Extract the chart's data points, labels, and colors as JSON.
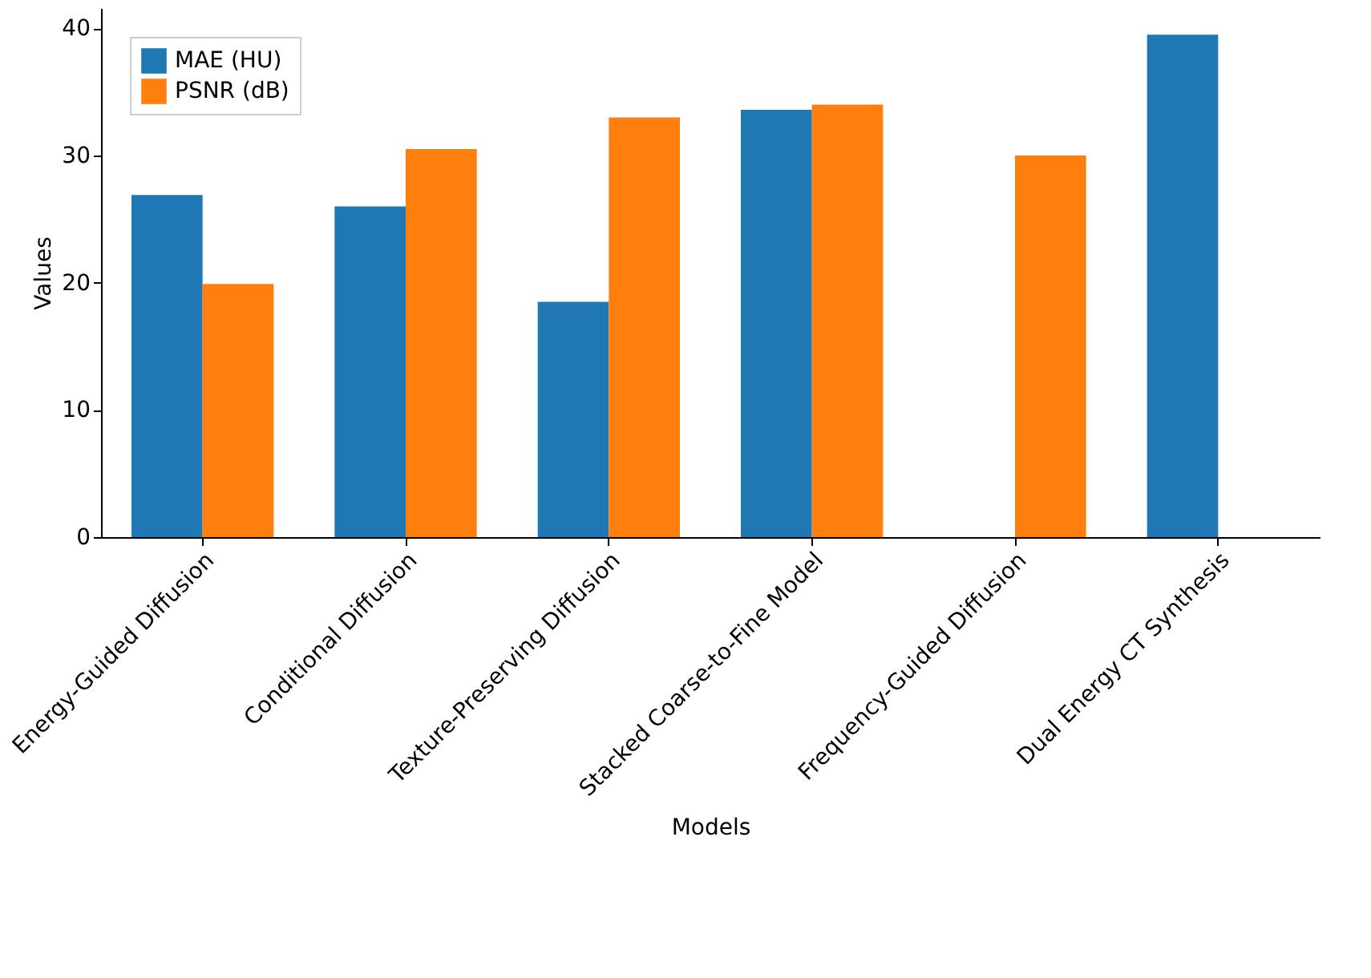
{
  "chart_data": {
    "type": "bar",
    "xlabel": "Models",
    "ylabel": "Values",
    "categories": [
      "Energy-Guided Diffusion",
      "Conditional Diffusion",
      "Texture-Preserving Diffusion",
      "Stacked Coarse-to-Fine Model",
      "Frequency-Guided Diffusion",
      "Dual Energy CT Synthesis"
    ],
    "series": [
      {
        "name": "MAE (HU)",
        "color": "#1f77b4",
        "values": [
          26.9,
          26.0,
          18.5,
          33.6,
          null,
          39.5
        ]
      },
      {
        "name": "PSNR (dB)",
        "color": "#ff7f0e",
        "values": [
          19.9,
          30.5,
          33.0,
          34.0,
          30.0,
          null
        ]
      }
    ],
    "ylim": [
      0,
      41.6
    ],
    "yticks": [
      0,
      10,
      20,
      30,
      40
    ],
    "grid": false,
    "legend": "top left"
  }
}
